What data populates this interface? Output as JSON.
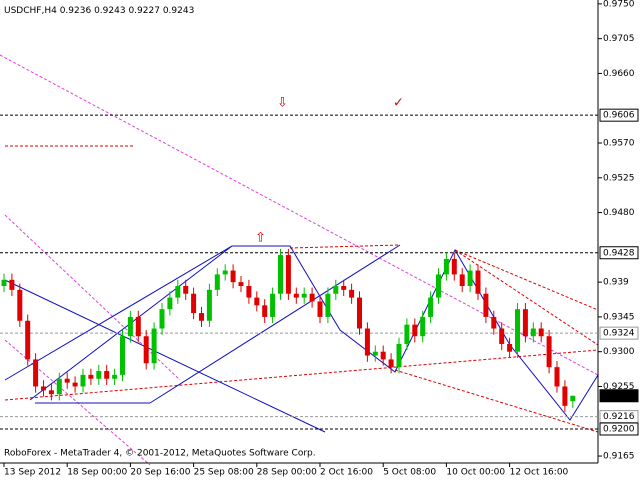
{
  "chart_data": {
    "type": "candlestick",
    "title": "USDCHF,H4",
    "annotation": "RoboForex - MetaTrader 4, © 2001-2012, MetaQuotes Software Corp.",
    "categories": [
      "13 Sep 2012",
      null,
      null,
      null,
      null,
      null,
      null,
      null,
      "18 Sep 00:00",
      null,
      null,
      null,
      null,
      null,
      null,
      null,
      "20 Sep 16:00",
      null,
      null,
      null,
      null,
      null,
      null,
      null,
      "25 Sep 08:00",
      null,
      null,
      null,
      null,
      null,
      null,
      null,
      "28 Sep 00:00",
      null,
      null,
      null,
      null,
      null,
      null,
      null,
      "2 Oct 16:00",
      null,
      null,
      null,
      null,
      null,
      null,
      null,
      "5 Oct 08:00",
      null,
      null,
      null,
      null,
      null,
      null,
      null,
      "10 Oct 00:00",
      null,
      null,
      null,
      null,
      null,
      null,
      null,
      "12 Oct 16:00",
      null,
      null,
      null,
      null,
      null,
      null,
      null,
      null
    ],
    "open": [
      0.9385,
      0.9393,
      0.938,
      0.934,
      0.929,
      0.9255,
      0.925,
      0.9245,
      0.9265,
      0.926,
      0.9255,
      0.927,
      0.9265,
      0.9275,
      0.9265,
      0.927,
      0.932,
      0.9345,
      0.932,
      0.9285,
      0.933,
      0.9355,
      0.937,
      0.9385,
      0.9375,
      0.935,
      0.934,
      0.938,
      0.94,
      0.9405,
      0.939,
      0.9385,
      0.937,
      0.936,
      0.9345,
      0.9375,
      0.9425,
      0.9375,
      0.937,
      0.9375,
      0.9365,
      0.9345,
      0.9375,
      0.9385,
      0.938,
      0.937,
      0.933,
      0.9295,
      0.93,
      0.929,
      0.928,
      0.931,
      0.9335,
      0.932,
      0.9345,
      0.937,
      0.94,
      0.942,
      0.94,
      0.9385,
      0.9405,
      0.9375,
      0.9345,
      0.933,
      0.931,
      0.93,
      0.9355,
      0.932,
      0.933,
      0.932,
      0.928,
      0.9255,
      0.9236
    ],
    "high": [
      0.9401,
      0.9401,
      0.9388,
      0.9348,
      0.9298,
      0.9263,
      0.9258,
      0.9273,
      0.9273,
      0.9268,
      0.9278,
      0.9278,
      0.9283,
      0.9283,
      0.9278,
      0.9328,
      0.9353,
      0.9353,
      0.9328,
      0.9338,
      0.9363,
      0.9378,
      0.9393,
      0.9393,
      0.9383,
      0.9358,
      0.9388,
      0.9408,
      0.9413,
      0.9413,
      0.9398,
      0.9393,
      0.9378,
      0.9368,
      0.9383,
      0.9433,
      0.9433,
      0.9383,
      0.9383,
      0.9383,
      0.9373,
      0.9383,
      0.9393,
      0.9393,
      0.9388,
      0.9378,
      0.9338,
      0.9308,
      0.9308,
      0.9298,
      0.9318,
      0.9343,
      0.9343,
      0.9353,
      0.9378,
      0.9408,
      0.9428,
      0.9428,
      0.9408,
      0.9413,
      0.9413,
      0.9383,
      0.9353,
      0.9338,
      0.9318,
      0.9363,
      0.9363,
      0.9338,
      0.9338,
      0.9328,
      0.9288,
      0.9263,
      0.9243
    ],
    "low": [
      0.9377,
      0.9372,
      0.9332,
      0.9282,
      0.9247,
      0.9242,
      0.9237,
      0.9237,
      0.9252,
      0.9247,
      0.9247,
      0.9257,
      0.9257,
      0.9257,
      0.9257,
      0.9262,
      0.9312,
      0.9312,
      0.9277,
      0.9277,
      0.9322,
      0.9347,
      0.9362,
      0.9367,
      0.9342,
      0.9332,
      0.9332,
      0.9372,
      0.9392,
      0.9382,
      0.9377,
      0.9362,
      0.9352,
      0.9337,
      0.9337,
      0.9367,
      0.9367,
      0.9362,
      0.9362,
      0.9357,
      0.9337,
      0.9337,
      0.9367,
      0.9372,
      0.9362,
      0.9322,
      0.9287,
      0.9287,
      0.9282,
      0.9272,
      0.9272,
      0.9302,
      0.9312,
      0.9312,
      0.9337,
      0.9362,
      0.9392,
      0.9392,
      0.9377,
      0.9377,
      0.9367,
      0.9337,
      0.9322,
      0.9302,
      0.9292,
      0.9292,
      0.9312,
      0.9312,
      0.9312,
      0.9272,
      0.9247,
      0.9222,
      0.9227
    ],
    "close": [
      0.9393,
      0.938,
      0.934,
      0.929,
      0.9255,
      0.925,
      0.9245,
      0.9265,
      0.926,
      0.9255,
      0.927,
      0.9265,
      0.9275,
      0.9265,
      0.927,
      0.932,
      0.9345,
      0.932,
      0.9285,
      0.933,
      0.9355,
      0.937,
      0.9385,
      0.9375,
      0.935,
      0.934,
      0.938,
      0.94,
      0.9405,
      0.939,
      0.9385,
      0.937,
      0.936,
      0.9345,
      0.9375,
      0.9425,
      0.9375,
      0.937,
      0.9375,
      0.9365,
      0.9345,
      0.9375,
      0.9385,
      0.938,
      0.937,
      0.933,
      0.9295,
      0.93,
      0.929,
      0.928,
      0.931,
      0.9335,
      0.932,
      0.9345,
      0.937,
      0.94,
      0.942,
      0.94,
      0.9385,
      0.9405,
      0.9375,
      0.9345,
      0.933,
      0.931,
      0.93,
      0.9355,
      0.932,
      0.933,
      0.932,
      0.928,
      0.9255,
      0.923,
      0.9243
    ],
    "up_color": "#00c000",
    "down_color": "#e00000",
    "ylim": [
      0.9156,
      0.9755
    ],
    "yticks": [
      {
        "value": 0.975,
        "label": "0.9750"
      },
      0.9705,
      {
        "value": 0.966,
        "label": "0.9660"
      },
      {
        "value": 0.957,
        "label": "0.9570"
      },
      0.9525,
      {
        "value": 0.948,
        "label": "0.9480"
      },
      0.939,
      0.9345,
      {
        "value": 0.93,
        "label": "0.9300"
      },
      0.9255,
      0.9165
    ],
    "levels": [
      {
        "value": 0.9606,
        "color": "#000000",
        "style": "dashed"
      },
      {
        "value": 0.9428,
        "color": "#000000",
        "style": "dashed"
      },
      {
        "value": 0.9324,
        "color": "#999999",
        "style": "dashed"
      },
      {
        "value": 0.9243,
        "color": "#000000",
        "style": "current"
      },
      {
        "value": 0.9216,
        "color": "#999999",
        "style": "dashed"
      },
      {
        "value": 0.92,
        "label": "0.9200",
        "color": "#000000",
        "style": "dashed"
      }
    ]
  }
}
